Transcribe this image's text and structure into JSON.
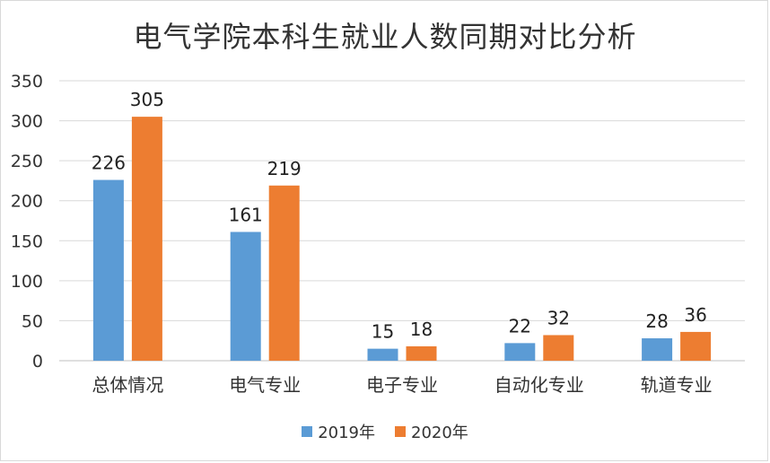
{
  "chart_data": {
    "type": "bar",
    "title": "电气学院本科生就业人数同期对比分析",
    "categories": [
      "总体情况",
      "电气专业",
      "电子专业",
      "自动化专业",
      "轨道专业"
    ],
    "series": [
      {
        "name": "2019年",
        "color": "#5b9bd5",
        "values": [
          226,
          161,
          15,
          22,
          28
        ]
      },
      {
        "name": "2020年",
        "color": "#ed7d31",
        "values": [
          305,
          219,
          18,
          32,
          36
        ]
      }
    ],
    "ylim": [
      0,
      350
    ],
    "yticks": [
      0,
      50,
      100,
      150,
      200,
      250,
      300,
      350
    ],
    "grid": true,
    "legend_position": "bottom"
  }
}
